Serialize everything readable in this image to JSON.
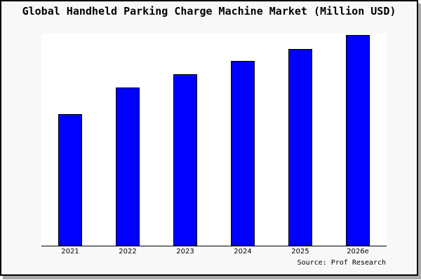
{
  "title": "Global Handheld Parking Charge Machine Market (Million USD)",
  "source_note": "Source: Prof Research",
  "colors": {
    "bar_fill": "#0000ff",
    "bar_border": "#000000",
    "figure_bg": "#f8f8f8",
    "plot_bg": "#ffffff",
    "frame_border": "#000000",
    "shadow": "#a8a8a8",
    "text": "#000000"
  },
  "chart_data": {
    "type": "bar",
    "title": "Global Handheld Parking Charge Machine Market (Million USD)",
    "categories": [
      "2021",
      "2022",
      "2023",
      "2024",
      "2025",
      "2026e"
    ],
    "values": [
      62.4,
      75.0,
      81.4,
      87.7,
      93.4,
      100
    ],
    "values_unit": "relative height, tallest bar (2026e) = 100; no numeric y-axis labels shown",
    "xlabel": "",
    "ylabel": "",
    "y_axis_tick_labels_visible": false,
    "gridlines": false,
    "legend": "none",
    "annotation": "Source: Prof Research"
  }
}
